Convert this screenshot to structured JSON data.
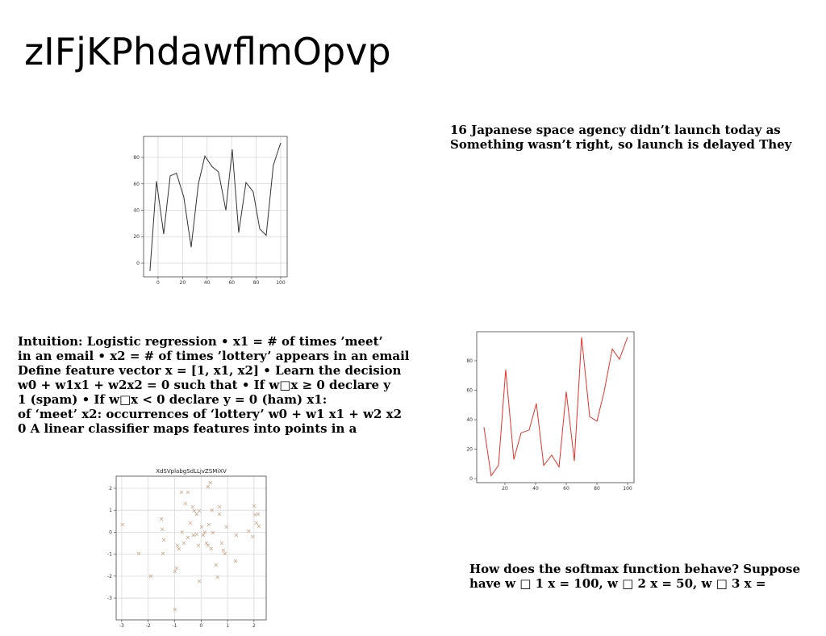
{
  "title": "zIFjKPhdawflmOpvp",
  "text_blocks": [
    {
      "lines": [
        "16 Japanese space agency didn’t launch today as",
        "Something wasn’t right, so launch is delayed They"
      ]
    },
    {
      "lines": [
        "Intuition: Logistic regression • x1 = # of times ’meet’",
        "in an email • x2 = # of times ’lottery’ appears in an email",
        "Define feature vector x = [1, x1, x2] • Learn the decision",
        "w0 + w1x1 + w2x2 = 0 such that • If w□x ≥ 0 declare y",
        "1 (spam) • If w□x < 0 declare y = 0 (ham) x1:",
        "of ‘meet’ x2: occurrences of ‘lottery’ w0 + w1 x1 + w2 x2",
        "0 A linear classifier maps features into points in a"
      ]
    },
    {
      "lines": [
        "How does the softmax function behave? Suppose",
        "have w □ 1 x = 100, w □ 2 x = 50, w □ 3 x ="
      ]
    }
  ],
  "chart_data": [
    {
      "type": "line",
      "x": [
        -6.6,
        -1.3,
        4.6,
        9.9,
        15,
        21,
        27,
        32.9,
        38.2,
        44.1,
        49.3,
        55.3,
        60.5,
        65.8,
        71.7,
        77.6,
        82.9,
        88.2,
        94,
        100
      ],
      "series": [
        {
          "color": "#333333",
          "values": [
            -6,
            62,
            22,
            66,
            68,
            50,
            12,
            60,
            81,
            73,
            69,
            40,
            86,
            23,
            61,
            54,
            26,
            21,
            74,
            91
          ]
        }
      ],
      "xlim": [
        -11.8,
        105.3
      ],
      "ylim": [
        -10.4,
        95.9
      ],
      "xticks": [
        0,
        20,
        40,
        60,
        80,
        100
      ],
      "yticks": [
        0,
        20,
        40,
        60,
        80
      ],
      "grid": true
    },
    {
      "type": "line",
      "x": [
        6.3,
        11,
        15.8,
        20.5,
        25.8,
        30.5,
        35.8,
        40.5,
        45.3,
        50.5,
        55.3,
        60,
        65.3,
        70,
        75.3,
        80,
        84.7,
        90,
        94.7,
        100
      ],
      "series": [
        {
          "color": "#e8312a",
          "values": [
            35,
            2,
            9,
            74,
            13,
            31,
            33,
            51,
            9,
            16,
            8,
            59,
            12,
            96,
            42,
            39,
            59,
            88,
            81,
            96
          ]
        }
      ],
      "xlim": [
        1.6,
        104.2
      ],
      "ylim": [
        -2.7,
        99.7
      ],
      "xticks": [
        20,
        40,
        60,
        80,
        100
      ],
      "yticks": [
        0,
        20,
        40,
        60,
        80
      ],
      "grid": false
    },
    {
      "type": "scatter",
      "title": "XdSVplabgSdLLjvZSMiXV",
      "marker": "x",
      "color": "#c9a98f",
      "x": [
        -2.97,
        -2.36,
        -1.9,
        -1.5,
        -1.47,
        -1.41,
        -1.44,
        -0.99,
        -0.93,
        -0.99,
        -0.74,
        -0.5,
        -0.59,
        -0.32,
        -0.26,
        -0.17,
        -0.07,
        0.26,
        0.35,
        0.41,
        0.69,
        0.69,
        -0.9,
        -0.84,
        -0.72,
        -0.65,
        -0.5,
        -0.41,
        -0.29,
        -0.17,
        -0.1,
        -0.07,
        0.02,
        0.08,
        0.14,
        0.2,
        0.26,
        0.29,
        0.38,
        0.44,
        0.56,
        0.62,
        0.78,
        0.84,
        0.9,
        0.96,
        1.33,
        1.3,
        1.8,
        1.95,
        2.0,
        2.03,
        2.15,
        2.09,
        2.18
      ],
      "values": [
        0.35,
        -0.97,
        -2.0,
        0.6,
        0.13,
        -0.35,
        -0.97,
        -1.79,
        -1.64,
        -3.52,
        1.82,
        1.82,
        1.3,
        1.15,
        0.97,
        0.82,
        0.97,
        2.07,
        2.25,
        1.0,
        1.15,
        0.82,
        -0.6,
        -0.75,
        0.0,
        -0.5,
        -0.24,
        0.42,
        -0.13,
        -0.1,
        -0.6,
        -2.23,
        0.24,
        -0.13,
        0.0,
        -0.5,
        -0.6,
        0.35,
        -0.75,
        -0.02,
        -1.49,
        -2.04,
        -0.5,
        -0.82,
        -0.97,
        0.24,
        -0.13,
        -1.31,
        0.05,
        -0.2,
        1.2,
        0.8,
        0.82,
        0.42,
        0.27
      ],
      "xlim": [
        -3.21,
        2.46
      ],
      "ylim": [
        -3.99,
        2.55
      ],
      "xticks": [
        -3,
        -2,
        -1,
        0,
        1,
        2
      ],
      "yticks": [
        -3,
        -2,
        -1,
        0,
        1,
        2
      ],
      "grid": true
    }
  ]
}
